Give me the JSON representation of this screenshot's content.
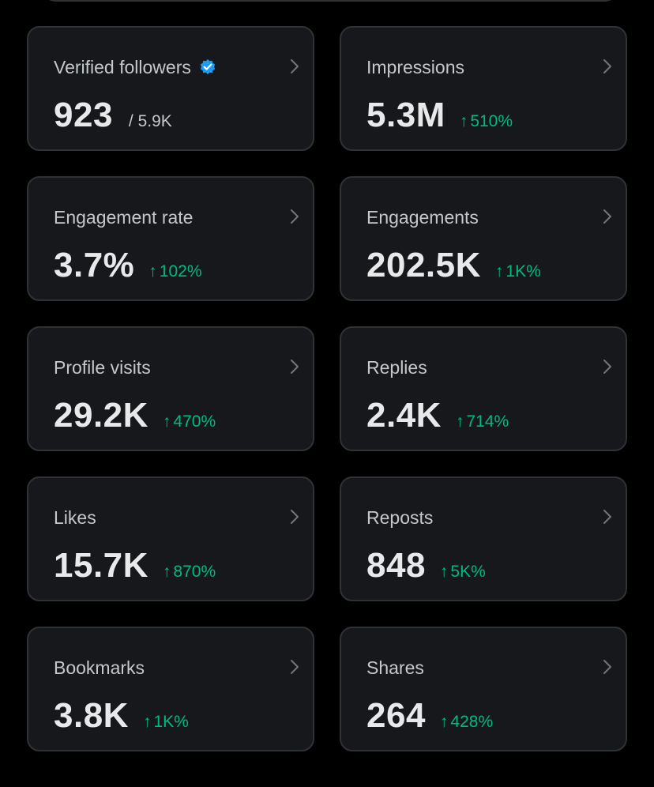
{
  "colors": {
    "background": "#000000",
    "card_background": "#16181c",
    "card_border": "#2f3336",
    "text_primary": "#e7e9ea",
    "text_secondary": "#c4c8cc",
    "positive_delta": "#00ba7c",
    "verified_badge": "#1d9bf0"
  },
  "cards": [
    {
      "label": "Verified followers",
      "value": "923",
      "secondary": "/ 5.9K",
      "verified_icon": "verified-badge-icon"
    },
    {
      "label": "Impressions",
      "value": "5.3M",
      "delta_arrow": "↑",
      "delta": "510%"
    },
    {
      "label": "Engagement rate",
      "value": "3.7%",
      "delta_arrow": "↑",
      "delta": "102%"
    },
    {
      "label": "Engagements",
      "value": "202.5K",
      "delta_arrow": "↑",
      "delta": "1K%"
    },
    {
      "label": "Profile visits",
      "value": "29.2K",
      "delta_arrow": "↑",
      "delta": "470%"
    },
    {
      "label": "Replies",
      "value": "2.4K",
      "delta_arrow": "↑",
      "delta": "714%"
    },
    {
      "label": "Likes",
      "value": "15.7K",
      "delta_arrow": "↑",
      "delta": "870%"
    },
    {
      "label": "Reposts",
      "value": "848",
      "delta_arrow": "↑",
      "delta": "5K%"
    },
    {
      "label": "Bookmarks",
      "value": "3.8K",
      "delta_arrow": "↑",
      "delta": "1K%"
    },
    {
      "label": "Shares",
      "value": "264",
      "delta_arrow": "↑",
      "delta": "428%"
    }
  ]
}
